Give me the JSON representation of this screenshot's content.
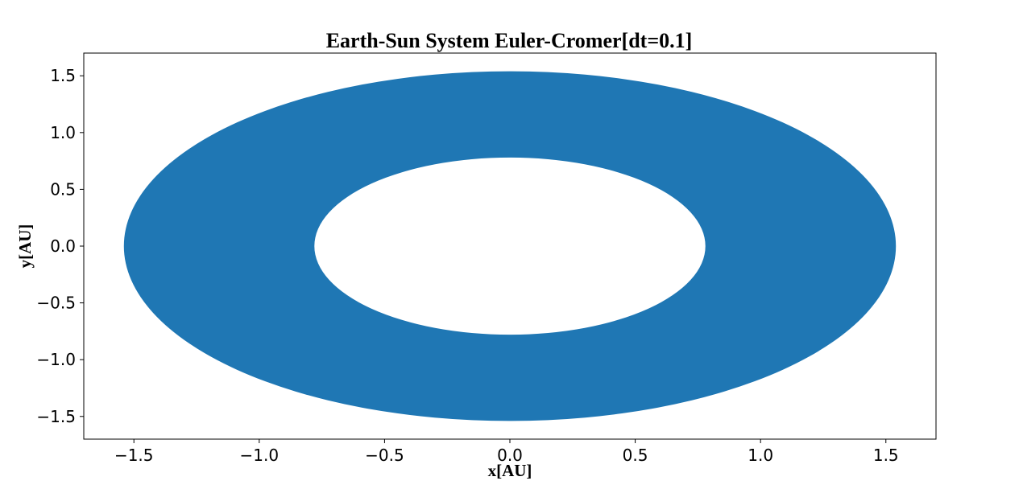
{
  "chart_data": {
    "type": "scatter",
    "title": "Earth-Sun System Euler-Cromer[dt=0.1]",
    "xlabel": "x[AU]",
    "ylabel": "y[AU]",
    "xlim": [
      -1.7,
      1.7
    ],
    "ylim": [
      -1.7,
      1.7
    ],
    "xticks": [
      -1.5,
      -1.0,
      -0.5,
      0.0,
      0.5,
      1.0,
      1.5
    ],
    "yticks": [
      -1.5,
      -1.0,
      -0.5,
      0.0,
      0.5,
      1.0,
      1.5
    ],
    "xtick_labels": [
      "−1.5",
      "−1.0",
      "−0.5",
      "0.0",
      "0.5",
      "1.0",
      "1.5"
    ],
    "ytick_labels": [
      "−1.5",
      "−1.0",
      "−0.5",
      "0.0",
      "0.5",
      "1.0",
      "1.5"
    ],
    "grid": false,
    "series_color": "#1f77b4",
    "series": [
      {
        "band": "annulus",
        "outer_radius": 1.54,
        "inner_radius": 0.78,
        "center": [
          0.0,
          0.0
        ]
      }
    ]
  }
}
